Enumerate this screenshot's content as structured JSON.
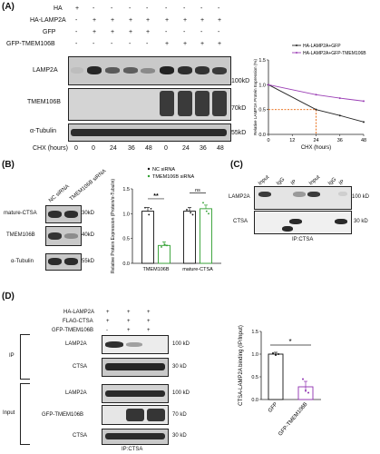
{
  "panelA": {
    "letter": "(A)",
    "rows": [
      {
        "label": "HA",
        "marks": [
          "+",
          "-",
          "-",
          "-",
          "-",
          "-",
          "-",
          "-",
          "-"
        ]
      },
      {
        "label": "HA-LAMP2A",
        "marks": [
          "-",
          "+",
          "+",
          "+",
          "+",
          "+",
          "+",
          "+",
          "+"
        ]
      },
      {
        "label": "GFP",
        "marks": [
          "-",
          "+",
          "+",
          "+",
          "+",
          "-",
          "-",
          "-",
          "-"
        ]
      },
      {
        "label": "GFP-TMEM106B",
        "marks": [
          "-",
          "-",
          "-",
          "-",
          "-",
          "+",
          "+",
          "+",
          "+"
        ]
      }
    ],
    "blot_labels": [
      "LAMP2A",
      "TMEM106B",
      "α-Tubulin"
    ],
    "mw": [
      "100kD",
      "70kD",
      "55kD"
    ],
    "chx_label": "CHX (hours)",
    "chx_values": [
      "0",
      "0",
      "24",
      "36",
      "48",
      "0",
      "24",
      "36",
      "48"
    ]
  },
  "chartA": {
    "ylabel": "Relative LAMP2A Protein Expression (%)",
    "xlabel": "CHX (hours)",
    "xticks": [
      "0",
      "12",
      "24",
      "36",
      "48"
    ],
    "yticks": [
      "0.0",
      "0.5",
      "1.0",
      "1.5"
    ],
    "legend": [
      "HA-LAMP2A+GFP",
      "HA-LAMP2A+GFP-TMEM106B"
    ],
    "colors": {
      "gfp": "#222222",
      "tmem": "#9b3fb5",
      "ref": "#e8650a"
    }
  },
  "panelB": {
    "letter": "(B)",
    "columns": [
      "NC siRNA",
      "TMEM106B siRNA"
    ],
    "blot_labels": [
      "mature-CTSA",
      "TMEM106B",
      "α-Tubulin"
    ],
    "mw": [
      "30kD",
      "40kD",
      "55kD"
    ]
  },
  "chartB": {
    "ylabel": "Relative Protein Expression (Protein/α-Tubulin)",
    "legend": [
      "NC siRNA",
      "TMEM106B siRNA"
    ],
    "categories": [
      "TMEM106B",
      "mature-CTSA"
    ],
    "yticks": [
      "0.0",
      "0.5",
      "1.0",
      "1.5"
    ],
    "sig": [
      "**",
      "ns"
    ],
    "colors": {
      "nc": "#111111",
      "si": "#2e9e2e"
    }
  },
  "panelC": {
    "letter": "(C)",
    "lanes": [
      "Input",
      "IgG",
      "IP",
      "Input",
      "IgG",
      "IP"
    ],
    "blot_labels": [
      "LAMP2A",
      "CTSA"
    ],
    "mw": [
      "100 kD",
      "30 kD"
    ],
    "footer": "IP:CTSA"
  },
  "panelD": {
    "letter": "(D)",
    "rows": [
      {
        "label": "HA-LAMP2A",
        "marks": [
          "+",
          "+",
          "+"
        ]
      },
      {
        "label": "FLAG-CTSA",
        "marks": [
          "+",
          "+",
          "+"
        ]
      },
      {
        "label": "GFP-TMEM106B",
        "marks": [
          "-",
          "+",
          "+"
        ]
      }
    ],
    "sections": [
      "IP",
      "Input"
    ],
    "blot_labels": [
      "LAMP2A",
      "CTSA",
      "LAMP2A",
      "GFP-TMEM106B",
      "CTSA"
    ],
    "mw": [
      "100 kD",
      "30 kD",
      "100 kD",
      "70 kD",
      "30 kD"
    ],
    "footer": "IP:CTSA"
  },
  "chartD": {
    "ylabel": "CTSA-LAMP2A binding (IP/Input)",
    "categories": [
      "GFP",
      "GFP-TMEM106B"
    ],
    "yticks": [
      "0.0",
      "0.5",
      "1.0",
      "1.5"
    ],
    "sig": "*",
    "colors": {
      "gfp": "#111111",
      "tmem": "#8e2fb0"
    }
  },
  "chart_data": [
    {
      "type": "line",
      "xlabel": "CHX (hours)",
      "ylabel": "Relative LAMP2A Protein Expression (%)",
      "x": [
        0,
        24,
        36,
        48
      ],
      "series": [
        {
          "name": "HA-LAMP2A+GFP",
          "values": [
            1.0,
            0.5,
            0.38,
            0.25
          ]
        },
        {
          "name": "HA-LAMP2A+GFP-TMEM106B",
          "values": [
            1.0,
            0.8,
            0.73,
            0.67
          ]
        }
      ],
      "xlim": [
        0,
        48
      ],
      "ylim": [
        0,
        1.5
      ]
    },
    {
      "type": "bar",
      "ylabel": "Relative Protein Expression (Protein/α-Tubulin)",
      "categories": [
        "TMEM106B",
        "mature-CTSA"
      ],
      "series": [
        {
          "name": "NC siRNA",
          "values": [
            1.05,
            1.05
          ]
        },
        {
          "name": "TMEM106B siRNA",
          "values": [
            0.36,
            1.1
          ]
        }
      ],
      "ylim": [
        0,
        1.5
      ]
    },
    {
      "type": "bar",
      "ylabel": "CTSA-LAMP2A binding (IP/Input)",
      "categories": [
        "GFP",
        "GFP-TMEM106B"
      ],
      "values": [
        1.0,
        0.28
      ],
      "ylim": [
        0,
        1.5
      ]
    }
  ]
}
